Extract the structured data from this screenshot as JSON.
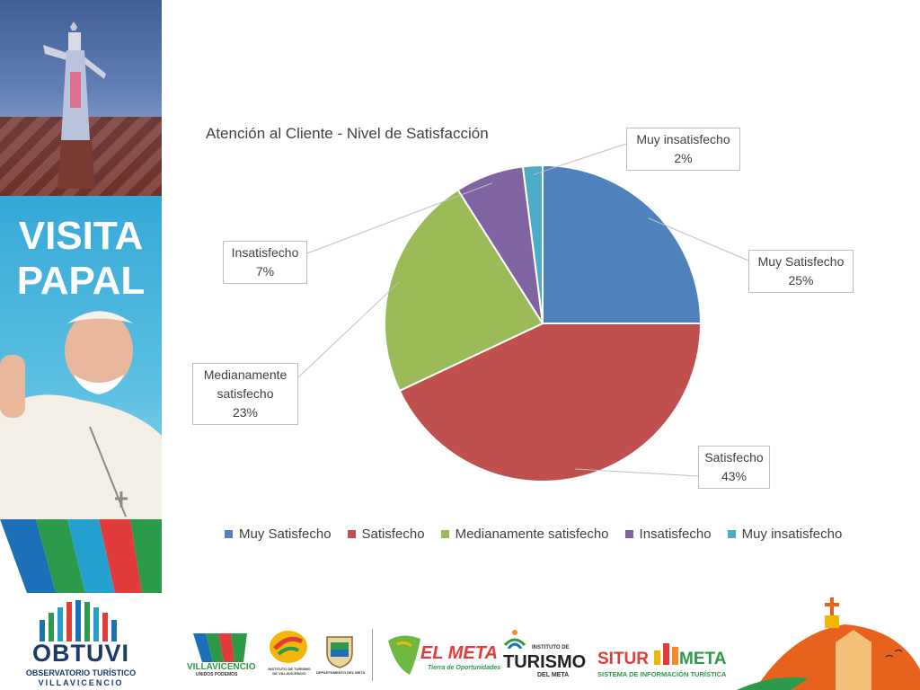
{
  "sidebar": {
    "title_line1": "VISITA",
    "title_line2": "PAPAL",
    "brand_name": "OBTUVI",
    "brand_sub1": "OBSERVATORIO TURÍSTICO",
    "brand_sub2": "VILLAVICENCIO"
  },
  "chart_data": {
    "type": "pie",
    "title": "Atención al Cliente - Nivel de Satisfacción",
    "categories": [
      "Muy Satisfecho",
      "Satisfecho",
      "Medianamente satisfecho",
      "Insatisfecho",
      "Muy insatisfecho"
    ],
    "values": [
      25,
      43,
      23,
      7,
      2
    ],
    "value_labels": [
      "25%",
      "43%",
      "23%",
      "7%",
      "2%"
    ],
    "data_label_names": [
      "Muy Satisfecho",
      "Satisfecho",
      "Medianamente satisfecho",
      "Insatisfecho",
      "Muy insatisfecho"
    ],
    "colors": [
      "#4f81bd",
      "#c0504d",
      "#9bbb59",
      "#8064a2",
      "#4bacc6"
    ],
    "legend_position": "bottom"
  },
  "footer": {
    "logo1": "VILLAVICENCIO",
    "logo1_sub": "UNIDOS PODEMOS",
    "logo2_sub": "INSTITUTO DE TURISMO DE VILLAVICENCIO",
    "logo3_sub": "DEPARTAMENTO DEL META",
    "logo4": "EL META",
    "logo4_sub": "Tierra de Oportunidades",
    "logo5_top": "INSTITUTO DE",
    "logo5": "TURISMO",
    "logo5_sub": "DEL META",
    "logo6a": "SITUR",
    "logo6b": "META",
    "logo6_sub": "SISTEMA DE INFORMACIÓN TURÍSTICA"
  }
}
